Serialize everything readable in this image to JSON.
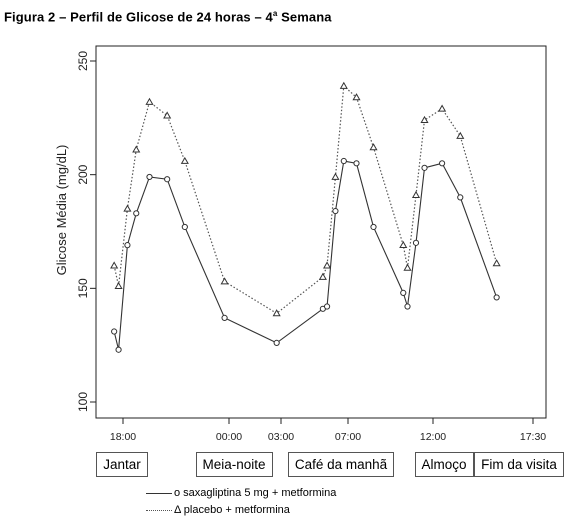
{
  "figure": {
    "title_prefix": "Figura 2 – Perfil de Glicose de 24 horas – 4",
    "title_sup": "a",
    "title_suffix": " Semana"
  },
  "chart_data": {
    "type": "line",
    "ylabel": "Glicose Média (mg/dL)",
    "xlabel": "",
    "ylim": [
      100,
      250
    ],
    "yticks": [
      100,
      150,
      200,
      250
    ],
    "grid": false,
    "x_ticks": [
      "18:00",
      "00:00",
      "03:00",
      "07:00",
      "12:00",
      "17:30"
    ],
    "meal_labels": [
      "Jantar",
      "Meia-noite",
      "Café da manhã",
      "Almoço",
      "Fim da visita"
    ],
    "time_unit": "hours of day",
    "series": [
      {
        "name": "o saxagliptina 5 mg + metformina",
        "marker": "circle",
        "line_style": "solid",
        "color": "#333333",
        "x": [
          17.5,
          17.75,
          18.25,
          18.75,
          19.5,
          20.5,
          21.5,
          23.75,
          26.75,
          29.5,
          29.75,
          30.25,
          30.75,
          31.5,
          32.5,
          34.25,
          34.5,
          35.0,
          35.5,
          36.5,
          37.5,
          39.5
        ],
        "y": [
          131,
          123,
          169,
          183,
          199,
          198,
          177,
          137,
          126,
          141,
          142,
          184,
          206,
          205,
          177,
          148,
          142,
          170,
          203,
          205,
          190,
          146
        ]
      },
      {
        "name": "Δ placebo + metformina",
        "marker": "triangle",
        "line_style": "dotted",
        "color": "#555555",
        "x": [
          17.5,
          17.75,
          18.25,
          18.75,
          19.5,
          20.5,
          21.5,
          23.75,
          26.75,
          29.5,
          29.75,
          30.25,
          30.75,
          31.5,
          32.5,
          34.25,
          34.5,
          35.0,
          35.5,
          36.5,
          37.5,
          39.5
        ],
        "y": [
          160,
          151,
          185,
          211,
          232,
          226,
          206,
          153,
          139,
          155,
          160,
          199,
          239,
          234,
          212,
          169,
          159,
          191,
          224,
          229,
          217,
          161
        ]
      }
    ]
  }
}
